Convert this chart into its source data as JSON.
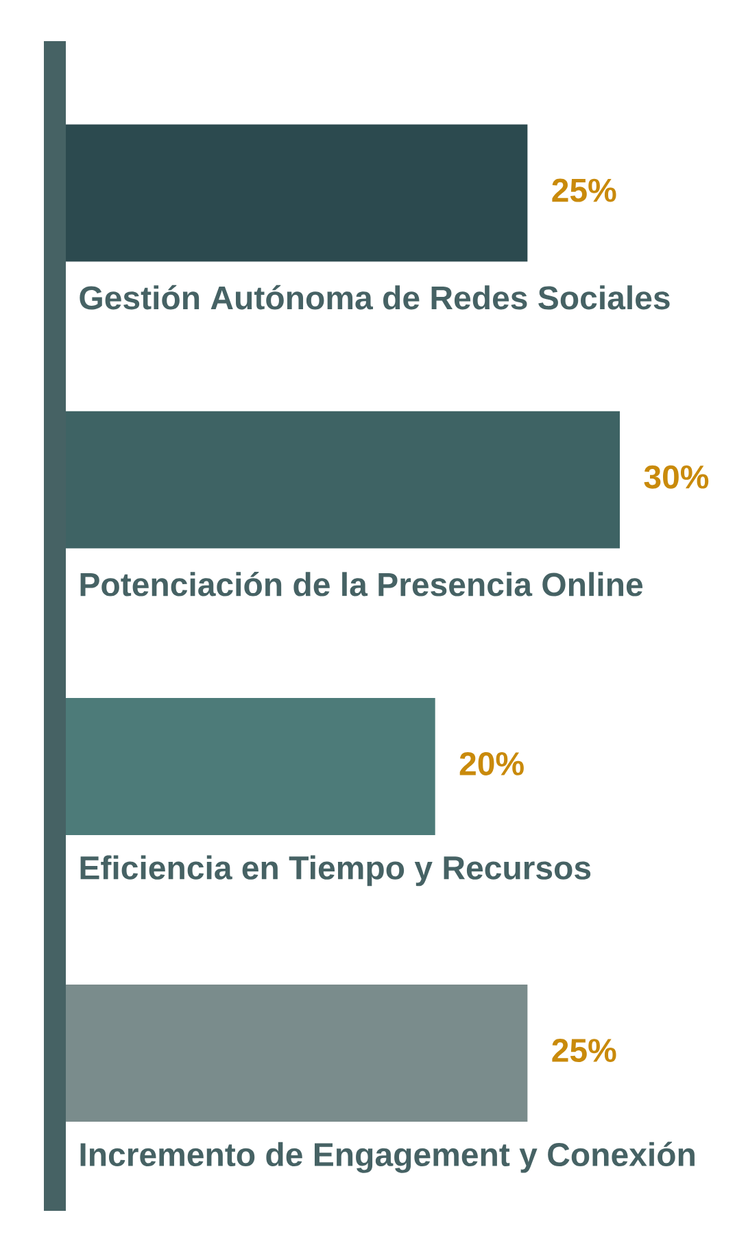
{
  "chart_data": {
    "type": "bar",
    "orientation": "horizontal",
    "categories": [
      "Gestión Autónoma de Redes Sociales",
      "Potenciación de la Presencia Online",
      "Eficiencia en  Tiempo y Recursos",
      "Incremento de Engagement y Conexión"
    ],
    "values": [
      25,
      30,
      20,
      25
    ],
    "colors": [
      "#2c4a4f",
      "#3e6364",
      "#4d7b79",
      "#7a8c8c"
    ],
    "value_labels": [
      "25%",
      "30%",
      "20%",
      "25%"
    ]
  }
}
